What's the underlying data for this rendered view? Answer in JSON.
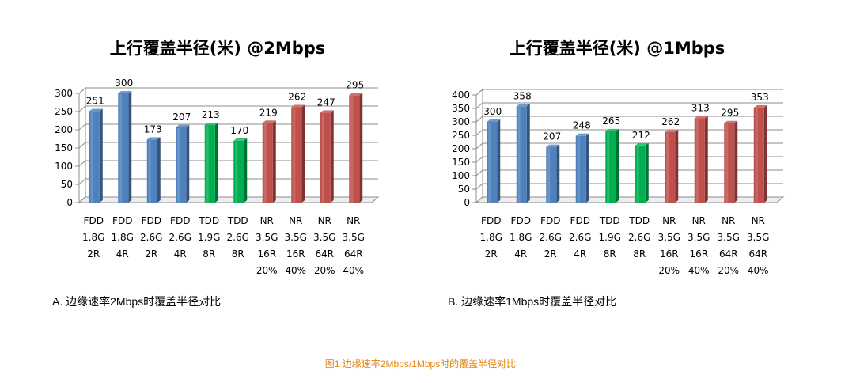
{
  "figure_caption": "图1 边缘速率2Mbps/1Mbps时的覆盖半径对比",
  "colors": {
    "blue": "#4f81bd",
    "green": "#00b050",
    "red": "#c0504d",
    "caption": "#e8830b"
  },
  "chart_data": [
    {
      "type": "bar",
      "title": "上行覆盖半径(米) @2Mbps",
      "caption": "A. 边缘速率2Mbps时覆盖半径对比",
      "categories": [
        [
          "FDD",
          "1.8G",
          "2R"
        ],
        [
          "FDD",
          "1.8G",
          "4R"
        ],
        [
          "FDD",
          "2.6G",
          "2R"
        ],
        [
          "FDD",
          "2.6G",
          "4R"
        ],
        [
          "TDD",
          "1.9G",
          "8R"
        ],
        [
          "TDD",
          "2.6G",
          "8R"
        ],
        [
          "NR",
          "3.5G",
          "16R",
          "20%"
        ],
        [
          "NR",
          "3.5G",
          "16R",
          "40%"
        ],
        [
          "NR",
          "3.5G",
          "64R",
          "20%"
        ],
        [
          "NR",
          "3.5G",
          "64R",
          "40%"
        ]
      ],
      "values": [
        251,
        300,
        173,
        207,
        213,
        170,
        219,
        262,
        247,
        295
      ],
      "bar_colors": [
        "blue",
        "blue",
        "blue",
        "blue",
        "green",
        "green",
        "red",
        "red",
        "red",
        "red"
      ],
      "yticks": [
        0,
        50,
        100,
        150,
        200,
        250,
        300
      ],
      "ylim": [
        0,
        300
      ],
      "grid": true,
      "xlabel": "",
      "ylabel": ""
    },
    {
      "type": "bar",
      "title": "上行覆盖半径(米) @1Mbps",
      "caption": "B. 边缘速率1Mbps时覆盖半径对比",
      "categories": [
        [
          "FDD",
          "1.8G",
          "2R"
        ],
        [
          "FDD",
          "1.8G",
          "4R"
        ],
        [
          "FDD",
          "2.6G",
          "2R"
        ],
        [
          "FDD",
          "2.6G",
          "4R"
        ],
        [
          "TDD",
          "1.9G",
          "8R"
        ],
        [
          "TDD",
          "2.6G",
          "8R"
        ],
        [
          "NR",
          "3.5G",
          "16R",
          "20%"
        ],
        [
          "NR",
          "3.5G",
          "16R",
          "40%"
        ],
        [
          "NR",
          "3.5G",
          "64R",
          "20%"
        ],
        [
          "NR",
          "3.5G",
          "64R",
          "40%"
        ]
      ],
      "values": [
        300,
        358,
        207,
        248,
        265,
        212,
        262,
        313,
        295,
        353
      ],
      "bar_colors": [
        "blue",
        "blue",
        "blue",
        "blue",
        "green",
        "green",
        "red",
        "red",
        "red",
        "red"
      ],
      "yticks": [
        0,
        50,
        100,
        150,
        200,
        250,
        300,
        350,
        400
      ],
      "ylim": [
        0,
        400
      ],
      "grid": true,
      "xlabel": "",
      "ylabel": ""
    }
  ]
}
